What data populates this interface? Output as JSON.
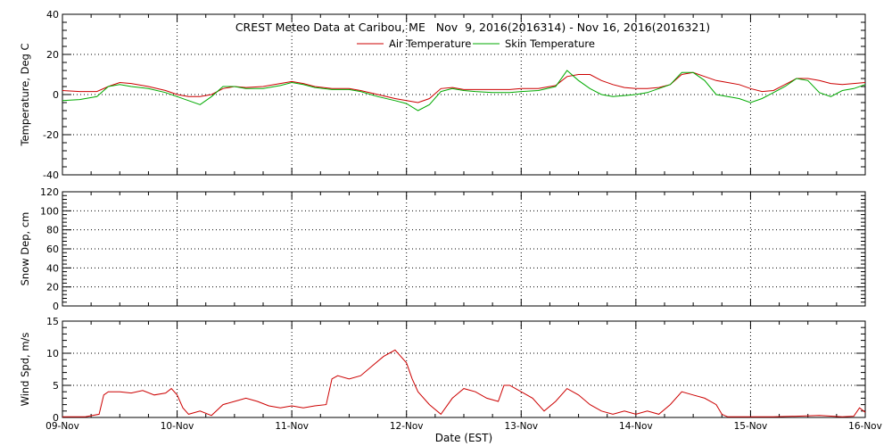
{
  "title": "CREST Meteo Data at Caribou, ME   Nov  9, 2016(2016314) - Nov 16, 2016(2016321)",
  "x_axis": {
    "label": "Date (EST)",
    "ticks": [
      "09-Nov",
      "10-Nov",
      "11-Nov",
      "12-Nov",
      "13-Nov",
      "14-Nov",
      "15-Nov",
      "16-Nov"
    ]
  },
  "chart_data": [
    {
      "type": "line",
      "ylabel": "Temperature, Deg C",
      "ylim": [
        -40,
        40
      ],
      "yticks": [
        -40,
        -20,
        0,
        20,
        40
      ],
      "grid": true,
      "legend_position": "top-center",
      "series": [
        {
          "name": "Air Temperature",
          "color": "#cc0000",
          "x": [
            0,
            0.15,
            0.3,
            0.4,
            0.5,
            0.6,
            0.75,
            0.9,
            1.0,
            1.1,
            1.2,
            1.3,
            1.4,
            1.5,
            1.6,
            1.75,
            1.9,
            2.0,
            2.1,
            2.2,
            2.35,
            2.5,
            2.6,
            2.75,
            2.9,
            3.0,
            3.1,
            3.2,
            3.3,
            3.4,
            3.5,
            3.6,
            3.75,
            3.9,
            4.0,
            4.15,
            4.3,
            4.4,
            4.5,
            4.6,
            4.7,
            4.8,
            4.9,
            5.0,
            5.1,
            5.2,
            5.3,
            5.4,
            5.5,
            5.6,
            5.7,
            5.8,
            5.9,
            6.0,
            6.1,
            6.2,
            6.3,
            6.4,
            6.5,
            6.6,
            6.7,
            6.8,
            6.9,
            7.0
          ],
          "values": [
            2,
            1.5,
            1.5,
            4,
            6,
            5.5,
            4,
            2,
            0,
            -1,
            -1,
            0,
            3,
            4,
            3.5,
            4,
            5.5,
            6.5,
            5.5,
            4,
            3,
            3,
            2,
            0,
            -2,
            -3,
            -4,
            -2,
            3,
            3.5,
            2.5,
            2.5,
            2.5,
            2.5,
            3,
            3,
            4.5,
            9,
            10,
            10,
            7,
            5,
            3.5,
            3,
            3,
            3.5,
            5,
            10,
            11,
            9,
            7,
            6,
            5,
            3,
            1.5,
            2,
            5,
            8,
            8,
            7,
            5.5,
            5,
            5.5,
            6
          ]
        },
        {
          "name": "Skin Temperature",
          "color": "#00aa00",
          "x": [
            0,
            0.15,
            0.3,
            0.4,
            0.5,
            0.6,
            0.75,
            0.9,
            1.0,
            1.1,
            1.2,
            1.3,
            1.4,
            1.5,
            1.6,
            1.75,
            1.9,
            2.0,
            2.1,
            2.2,
            2.35,
            2.5,
            2.6,
            2.75,
            2.9,
            3.0,
            3.1,
            3.2,
            3.3,
            3.4,
            3.5,
            3.6,
            3.75,
            3.9,
            4.0,
            4.15,
            4.3,
            4.4,
            4.5,
            4.6,
            4.7,
            4.8,
            4.9,
            5.0,
            5.1,
            5.2,
            5.3,
            5.4,
            5.5,
            5.6,
            5.7,
            5.8,
            5.9,
            6.0,
            6.1,
            6.2,
            6.3,
            6.4,
            6.5,
            6.6,
            6.7,
            6.8,
            6.9,
            7.0
          ],
          "values": [
            -3,
            -2.5,
            -1,
            4,
            5,
            4,
            3,
            1,
            -1,
            -3,
            -5,
            -1,
            4,
            4,
            3,
            3,
            4.5,
            6,
            5,
            3.5,
            2.5,
            2.5,
            1.5,
            -1,
            -3,
            -4.5,
            -8,
            -5,
            1.5,
            3,
            2,
            1.5,
            1,
            1,
            1.5,
            2,
            4,
            12,
            7,
            3,
            0,
            -1,
            -0.5,
            0,
            1,
            3,
            5,
            11,
            11,
            7,
            0,
            -1,
            -2,
            -4,
            -2,
            1,
            4,
            8,
            7,
            1,
            -1,
            2,
            3,
            5
          ]
        }
      ]
    },
    {
      "type": "line",
      "ylabel": "Snow Dep, cm",
      "ylim": [
        0,
        120
      ],
      "yticks": [
        0,
        20,
        40,
        60,
        80,
        100,
        120
      ],
      "grid": true,
      "series": []
    },
    {
      "type": "line",
      "ylabel": "Wind Spd, m/s",
      "ylim": [
        0,
        15
      ],
      "yticks": [
        0,
        5,
        10,
        15
      ],
      "grid": true,
      "series": [
        {
          "color": "#cc0000",
          "x": [
            0,
            0.2,
            0.32,
            0.36,
            0.4,
            0.5,
            0.6,
            0.7,
            0.8,
            0.9,
            0.95,
            1.0,
            1.05,
            1.1,
            1.2,
            1.3,
            1.4,
            1.5,
            1.6,
            1.7,
            1.8,
            1.9,
            2.0,
            2.1,
            2.2,
            2.3,
            2.35,
            2.4,
            2.5,
            2.6,
            2.7,
            2.8,
            2.9,
            2.95,
            3.0,
            3.05,
            3.1,
            3.2,
            3.3,
            3.4,
            3.5,
            3.6,
            3.7,
            3.8,
            3.85,
            3.9,
            4.0,
            4.1,
            4.2,
            4.3,
            4.4,
            4.5,
            4.6,
            4.7,
            4.8,
            4.9,
            5.0,
            5.1,
            5.2,
            5.3,
            5.4,
            5.5,
            5.6,
            5.7,
            5.75,
            5.8,
            5.9,
            6.0,
            6.2,
            6.4,
            6.6,
            6.8,
            6.9,
            6.95,
            7.0
          ],
          "values": [
            0.1,
            0.1,
            0.5,
            3.5,
            4,
            4,
            3.8,
            4.2,
            3.5,
            3.8,
            4.5,
            3.5,
            1.5,
            0.5,
            1,
            0.3,
            2,
            2.5,
            3,
            2.5,
            1.8,
            1.5,
            1.8,
            1.5,
            1.8,
            2,
            6,
            6.5,
            6,
            6.5,
            8,
            9.5,
            10.5,
            9.5,
            8.5,
            6,
            4,
            2,
            0.5,
            3,
            4.5,
            4,
            3,
            2.5,
            5,
            5,
            4,
            3,
            1,
            2.5,
            4.5,
            3.5,
            2,
            1,
            0.5,
            1,
            0.5,
            1,
            0.5,
            2,
            4,
            3.5,
            3,
            2,
            0.5,
            0.1,
            0.1,
            0.1,
            0.1,
            0.2,
            0.3,
            0.1,
            0.2,
            1.5,
            0.8
          ]
        }
      ]
    }
  ]
}
